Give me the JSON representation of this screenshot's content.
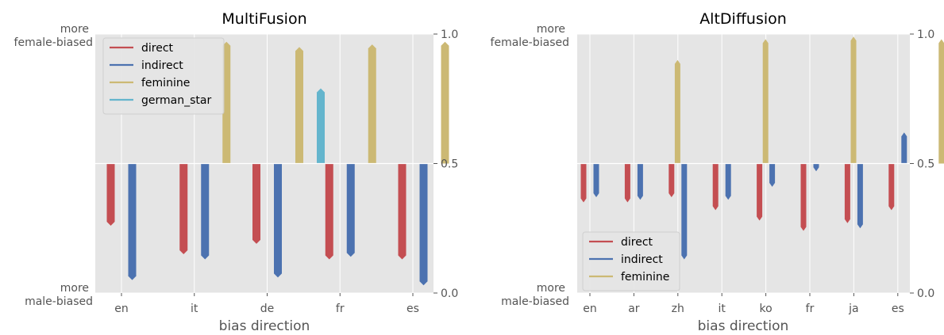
{
  "chart_data": [
    {
      "type": "bar",
      "title": "MultiFusion",
      "xlabel": "bias direction",
      "categories": [
        "en",
        "it",
        "de",
        "fr",
        "es"
      ],
      "y_right_ticks": [
        "0.0",
        "0.5",
        "1.0"
      ],
      "ylim": [
        0,
        1
      ],
      "baseline": 0.5,
      "y_left_top_label": [
        "more",
        "female-biased"
      ],
      "y_left_bottom_label": [
        "more",
        "male-biased"
      ],
      "grid": true,
      "legend_position": "top-left",
      "series": [
        {
          "name": "direct",
          "color": "#c44e52",
          "values": [
            0.26,
            0.15,
            0.19,
            0.13,
            0.13
          ]
        },
        {
          "name": "indirect",
          "color": "#4c72b0",
          "values": [
            0.05,
            0.13,
            0.06,
            0.14,
            0.03
          ]
        },
        {
          "name": "feminine",
          "color": "#ccb974",
          "values": [
            null,
            0.97,
            0.95,
            0.96,
            0.97
          ]
        },
        {
          "name": "german_star",
          "color": "#64b5cd",
          "values": [
            null,
            null,
            0.79,
            null,
            null
          ]
        }
      ]
    },
    {
      "type": "bar",
      "title": "AltDiffusion",
      "xlabel": "bias direction",
      "categories": [
        "en",
        "ar",
        "zh",
        "it",
        "ko",
        "fr",
        "ja",
        "es"
      ],
      "y_right_ticks": [
        "0.0",
        "0.5",
        "1.0"
      ],
      "ylim": [
        0,
        1
      ],
      "baseline": 0.5,
      "y_left_top_label": [
        "more",
        "female-biased"
      ],
      "y_left_bottom_label": [
        "more",
        "male-biased"
      ],
      "grid": true,
      "legend_position": "bottom-left",
      "series": [
        {
          "name": "direct",
          "color": "#c44e52",
          "values": [
            0.35,
            0.35,
            0.37,
            0.32,
            0.28,
            0.24,
            0.27,
            0.32
          ]
        },
        {
          "name": "indirect",
          "color": "#4c72b0",
          "values": [
            0.37,
            0.36,
            0.13,
            0.36,
            0.41,
            0.47,
            0.25,
            0.62
          ]
        },
        {
          "name": "feminine",
          "color": "#ccb974",
          "values": [
            null,
            0.9,
            null,
            0.98,
            null,
            0.99,
            null,
            0.98
          ]
        }
      ]
    }
  ]
}
